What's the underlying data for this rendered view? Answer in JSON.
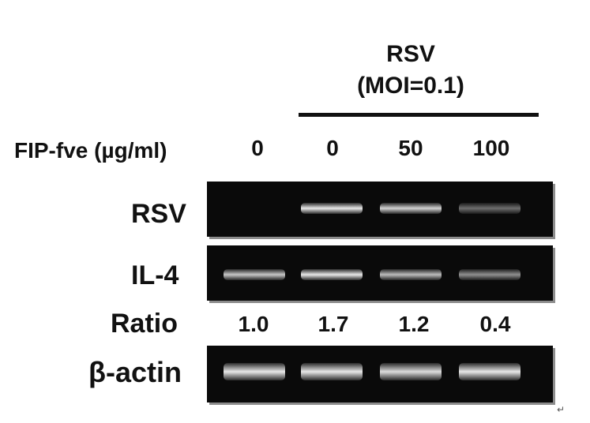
{
  "header": {
    "virus": "RSV",
    "moi": "(MOI=0.1)"
  },
  "dose_row": {
    "label": "FIP-fve (µg/ml)",
    "values": [
      "0",
      "0",
      "50",
      "100"
    ]
  },
  "rows": {
    "rsv": "RSV",
    "il4": "IL-4",
    "ratio": "Ratio",
    "actin": "β-actin"
  },
  "ratios": [
    "1.0",
    "1.7",
    "1.2",
    "0.4"
  ],
  "gel_bands": {
    "rsv": [
      0.0,
      1.0,
      0.9,
      0.45
    ],
    "il4": [
      0.85,
      1.0,
      0.8,
      0.6
    ],
    "actin": [
      1.0,
      1.0,
      0.95,
      1.0
    ]
  },
  "corner_mark": "↵",
  "colors": {
    "gel_background": "#0a0a0a",
    "band": "#e8e8e8",
    "text": "#111111"
  }
}
